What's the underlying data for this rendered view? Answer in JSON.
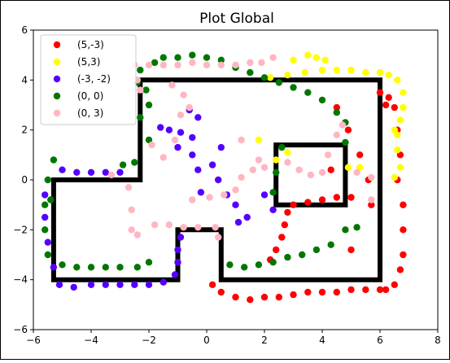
{
  "chart_data": {
    "type": "scatter",
    "title": "Plot Global",
    "xlabel": "",
    "ylabel": "",
    "xlim": [
      -6,
      8
    ],
    "ylim": [
      -6,
      6
    ],
    "xticks": [
      -6,
      -4,
      -2,
      0,
      2,
      4,
      6,
      8
    ],
    "yticks": [
      -6,
      -4,
      -2,
      0,
      2,
      4,
      6
    ],
    "xtick_labels": [
      "−6",
      "−4",
      "−2",
      "0",
      "2",
      "4",
      "6",
      "8"
    ],
    "ytick_labels": [
      "−6",
      "−4",
      "−2",
      "0",
      "2",
      "4",
      "6"
    ],
    "grid": false,
    "legend_position": "top-left",
    "walls": {
      "color": "#000000",
      "polygons": [
        [
          [
            -5.3,
            -4.0
          ],
          [
            -1.0,
            -4.0
          ],
          [
            -1.0,
            -2.0
          ],
          [
            0.5,
            -2.0
          ],
          [
            0.5,
            -4.0
          ],
          [
            6.0,
            -4.0
          ],
          [
            6.0,
            4.0
          ],
          [
            -2.3,
            4.0
          ],
          [
            -2.3,
            0.0
          ],
          [
            -5.3,
            0.0
          ]
        ],
        [
          [
            2.4,
            -1.0
          ],
          [
            4.8,
            -1.0
          ],
          [
            4.8,
            1.4
          ],
          [
            2.4,
            1.4
          ]
        ]
      ]
    },
    "series": [
      {
        "name": "(5,-3)",
        "color": "#ff0000",
        "points": [
          [
            6.0,
            3.5
          ],
          [
            6.3,
            3.3
          ],
          [
            6.5,
            2.9
          ],
          [
            6.6,
            2.0
          ],
          [
            6.7,
            1.0
          ],
          [
            6.6,
            0.0
          ],
          [
            6.8,
            -1.0
          ],
          [
            6.8,
            -2.0
          ],
          [
            6.8,
            -3.0
          ],
          [
            6.7,
            -3.6
          ],
          [
            6.5,
            -4.2
          ],
          [
            6.2,
            -4.4
          ],
          [
            6.0,
            -4.4
          ],
          [
            5.5,
            -4.4
          ],
          [
            5.0,
            -4.4
          ],
          [
            4.5,
            -4.5
          ],
          [
            4.0,
            -4.5
          ],
          [
            3.5,
            -4.5
          ],
          [
            3.0,
            -4.6
          ],
          [
            2.5,
            -4.7
          ],
          [
            2.0,
            -4.7
          ],
          [
            1.5,
            -4.8
          ],
          [
            1.0,
            -4.7
          ],
          [
            0.5,
            -4.5
          ],
          [
            0.2,
            -4.2
          ],
          [
            4.5,
            2.9
          ],
          [
            4.9,
            2.0
          ],
          [
            5.3,
            1.0
          ],
          [
            5.6,
            0.0
          ],
          [
            5.7,
            -1.0
          ],
          [
            5.0,
            -0.7
          ],
          [
            4.5,
            -0.7
          ],
          [
            4.0,
            -0.8
          ],
          [
            3.5,
            -0.9
          ],
          [
            3.0,
            -1.0
          ],
          [
            2.8,
            -1.3
          ],
          [
            2.7,
            -1.8
          ],
          [
            2.6,
            -2.3
          ],
          [
            2.4,
            -2.8
          ],
          [
            2.2,
            -3.2
          ],
          [
            4.3,
            0.4
          ],
          [
            5.0,
            -2.8
          ],
          [
            6.2,
            3.0
          ]
        ]
      },
      {
        "name": "(5,3)",
        "color": "#ffff00",
        "points": [
          [
            2.2,
            4.1
          ],
          [
            2.8,
            4.2
          ],
          [
            3.4,
            4.3
          ],
          [
            4.0,
            4.4
          ],
          [
            4.5,
            4.4
          ],
          [
            5.0,
            4.4
          ],
          [
            5.5,
            4.3
          ],
          [
            6.0,
            4.3
          ],
          [
            6.3,
            4.2
          ],
          [
            6.6,
            4.0
          ],
          [
            6.8,
            3.5
          ],
          [
            6.8,
            2.9
          ],
          [
            6.7,
            2.4
          ],
          [
            6.6,
            1.8
          ],
          [
            6.6,
            1.2
          ],
          [
            6.7,
            0.5
          ],
          [
            6.5,
            0.1
          ],
          [
            3.0,
            4.8
          ],
          [
            3.5,
            5.0
          ],
          [
            3.8,
            4.9
          ],
          [
            4.1,
            4.8
          ],
          [
            2.8,
            1.1
          ],
          [
            2.4,
            0.8
          ],
          [
            1.8,
            1.6
          ],
          [
            4.9,
            0.5
          ],
          [
            5.3,
            0.5
          ],
          [
            6.5,
            2.0
          ]
        ]
      },
      {
        "name": "(-3, -2)",
        "color": "#5500ff",
        "points": [
          [
            -5.0,
            0.4
          ],
          [
            -4.5,
            0.3
          ],
          [
            -4.0,
            0.3
          ],
          [
            -3.5,
            0.3
          ],
          [
            -3.0,
            0.3
          ],
          [
            -5.6,
            -0.6
          ],
          [
            -5.6,
            -1.5
          ],
          [
            -5.5,
            -2.5
          ],
          [
            -5.3,
            -3.5
          ],
          [
            -5.1,
            -4.2
          ],
          [
            -4.6,
            -4.3
          ],
          [
            -4.0,
            -4.2
          ],
          [
            -3.5,
            -4.2
          ],
          [
            -3.0,
            -4.2
          ],
          [
            -2.5,
            -4.2
          ],
          [
            -2.0,
            -4.2
          ],
          [
            -1.5,
            -4.1
          ],
          [
            -1.1,
            -3.8
          ],
          [
            -1.0,
            -3.3
          ],
          [
            -1.0,
            -2.8
          ],
          [
            -0.9,
            -2.3
          ],
          [
            -1.6,
            2.1
          ],
          [
            -1.3,
            2.0
          ],
          [
            -0.9,
            1.9
          ],
          [
            -0.5,
            1.7
          ],
          [
            -1.0,
            1.3
          ],
          [
            -0.5,
            1.0
          ],
          [
            -0.3,
            0.4
          ],
          [
            0.2,
            0.6
          ],
          [
            0.4,
            0.0
          ],
          [
            0.7,
            -0.6
          ],
          [
            1.0,
            -1.0
          ],
          [
            1.4,
            -1.5
          ],
          [
            1.1,
            -1.7
          ],
          [
            -0.2,
            -0.5
          ],
          [
            2.0,
            -0.6
          ],
          [
            2.3,
            -1.2
          ],
          [
            -0.6,
            2.8
          ],
          [
            -0.3,
            2.5
          ],
          [
            0.5,
            1.3
          ]
        ]
      },
      {
        "name": "(0, 0)",
        "color": "#007700",
        "points": [
          [
            -2.3,
            4.4
          ],
          [
            -2.4,
            3.9
          ],
          [
            -2.1,
            3.6
          ],
          [
            -2.0,
            3.0
          ],
          [
            -2.3,
            2.5
          ],
          [
            -2.0,
            1.6
          ],
          [
            -2.5,
            0.7
          ],
          [
            -2.9,
            0.6
          ],
          [
            -1.8,
            4.7
          ],
          [
            -1.5,
            4.9
          ],
          [
            -1.0,
            4.9
          ],
          [
            -0.5,
            5.0
          ],
          [
            0.0,
            4.9
          ],
          [
            0.5,
            4.8
          ],
          [
            1.0,
            4.5
          ],
          [
            1.5,
            4.3
          ],
          [
            2.0,
            4.1
          ],
          [
            2.5,
            3.9
          ],
          [
            3.0,
            3.7
          ],
          [
            3.5,
            3.5
          ],
          [
            4.0,
            3.2
          ],
          [
            4.5,
            2.7
          ],
          [
            4.8,
            2.3
          ],
          [
            2.6,
            1.3
          ],
          [
            2.4,
            0.3
          ],
          [
            2.3,
            -0.5
          ],
          [
            -5.3,
            0.8
          ],
          [
            -5.5,
            0.0
          ],
          [
            -5.6,
            -1.0
          ],
          [
            -5.6,
            -2.0
          ],
          [
            -5.5,
            -3.0
          ],
          [
            -5.0,
            -3.4
          ],
          [
            -4.5,
            -3.5
          ],
          [
            -4.0,
            -3.5
          ],
          [
            -3.5,
            -3.5
          ],
          [
            -3.0,
            -3.5
          ],
          [
            -2.4,
            -3.5
          ],
          [
            -2.0,
            -3.3
          ],
          [
            0.8,
            -3.4
          ],
          [
            1.3,
            -3.5
          ],
          [
            1.8,
            -3.4
          ],
          [
            2.3,
            -3.3
          ],
          [
            2.8,
            -3.1
          ],
          [
            3.3,
            -3.0
          ],
          [
            3.8,
            -2.8
          ],
          [
            4.3,
            -2.6
          ],
          [
            4.8,
            -2.0
          ],
          [
            5.2,
            -1.9
          ],
          [
            -5.4,
            -0.8
          ],
          [
            4.8,
            1.5
          ]
        ]
      },
      {
        "name": "(0, 3)",
        "color": "#ffb6c1",
        "points": [
          [
            -2.5,
            4.6
          ],
          [
            -2.0,
            4.6
          ],
          [
            -1.5,
            4.6
          ],
          [
            -1.0,
            4.6
          ],
          [
            -0.5,
            4.7
          ],
          [
            0.0,
            4.6
          ],
          [
            0.5,
            4.6
          ],
          [
            1.0,
            4.6
          ],
          [
            1.5,
            4.7
          ],
          [
            1.9,
            4.7
          ],
          [
            2.3,
            4.9
          ],
          [
            -2.4,
            4.0
          ],
          [
            -2.3,
            3.6
          ],
          [
            -1.2,
            3.8
          ],
          [
            -0.8,
            3.4
          ],
          [
            -0.6,
            2.9
          ],
          [
            -0.9,
            2.6
          ],
          [
            -1.1,
            1.6
          ],
          [
            -1.9,
            1.4
          ],
          [
            -1.5,
            0.9
          ],
          [
            -3.3,
            0.2
          ],
          [
            -2.7,
            -0.3
          ],
          [
            -2.6,
            -1.2
          ],
          [
            -2.6,
            -2.0
          ],
          [
            -2.4,
            -2.2
          ],
          [
            -1.8,
            -1.8
          ],
          [
            -1.3,
            -1.8
          ],
          [
            -0.8,
            -1.9
          ],
          [
            -0.3,
            -1.9
          ],
          [
            0.3,
            -1.9
          ],
          [
            0.4,
            -2.3
          ],
          [
            1.2,
            1.6
          ],
          [
            1.8,
            0.8
          ],
          [
            2.0,
            0.5
          ],
          [
            1.6,
            0.4
          ],
          [
            1.2,
            0.1
          ],
          [
            1.0,
            -0.4
          ],
          [
            0.6,
            -0.6
          ],
          [
            0.1,
            -0.7
          ],
          [
            -0.5,
            -0.8
          ],
          [
            2.8,
            0.7
          ],
          [
            3.2,
            0.4
          ],
          [
            3.6,
            0.2
          ],
          [
            4.0,
            0.3
          ],
          [
            4.2,
            1.0
          ],
          [
            4.5,
            1.8
          ],
          [
            4.7,
            2.2
          ],
          [
            5.2,
            0.3
          ],
          [
            5.7,
            0.1
          ],
          [
            5.7,
            -0.8
          ]
        ]
      }
    ]
  }
}
